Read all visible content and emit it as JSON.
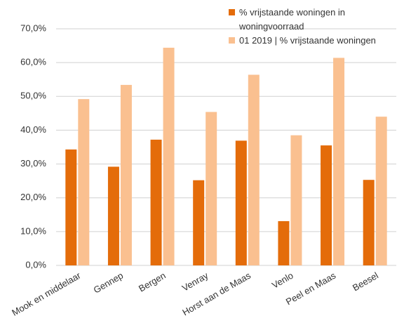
{
  "chart_data": {
    "type": "bar",
    "categories": [
      "Mook en middelaar",
      "Gennep",
      "Bergen",
      "Venray",
      "Horst aan de Maas",
      "Venlo",
      "Peel en Maas",
      "Beesel"
    ],
    "series": [
      {
        "name": "% vrijstaande woningen in woningvoorraad",
        "color": "#e46c0a",
        "values": [
          34.3,
          29.2,
          37.2,
          25.2,
          36.9,
          13.1,
          35.5,
          25.3
        ]
      },
      {
        "name": "01 2019 | % vrijstaande woningen",
        "color": "#fac090",
        "values": [
          49.2,
          53.4,
          64.4,
          45.4,
          56.4,
          38.5,
          61.4,
          44.0
        ]
      }
    ],
    "ylim": [
      0,
      70
    ],
    "yticks": [
      {
        "value": 0,
        "label": "0,0%"
      },
      {
        "value": 10,
        "label": "10,0%"
      },
      {
        "value": 20,
        "label": "20,0%"
      },
      {
        "value": 30,
        "label": "30,0%"
      },
      {
        "value": 40,
        "label": "40,0%"
      },
      {
        "value": 50,
        "label": "50,0%"
      },
      {
        "value": 60,
        "label": "60,0%"
      },
      {
        "value": 70,
        "label": "70,0%"
      }
    ],
    "grid": true,
    "legend": "top-right"
  }
}
